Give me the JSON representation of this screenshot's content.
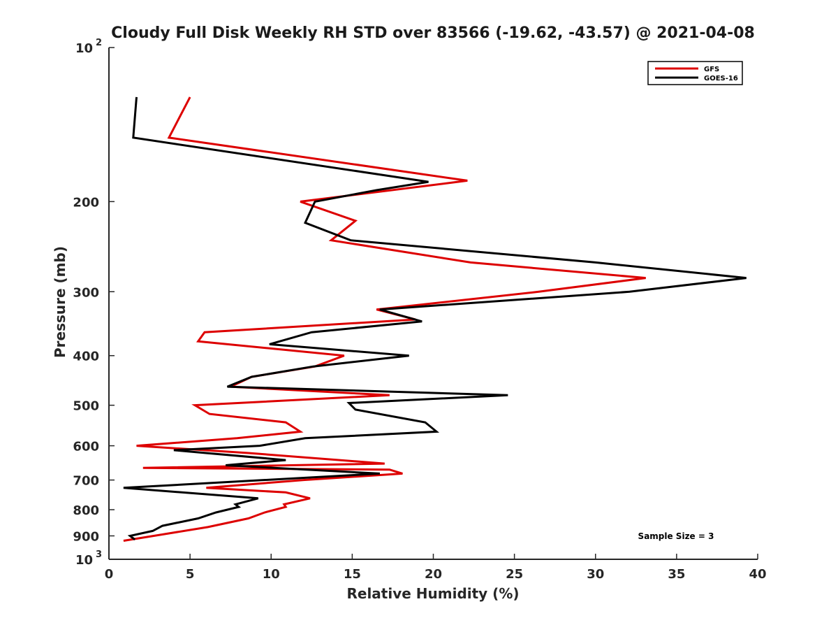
{
  "chart_data": {
    "type": "line",
    "title": "Cloudy Full Disk Weekly RH STD over 83566 (-19.62, -43.57) @ 2021-04-08",
    "xlabel": "Relative Humidity (%)",
    "ylabel": "Pressure (mb)",
    "x_scale": "linear",
    "y_scale": "log",
    "y_reversed": true,
    "xlim": [
      0,
      40
    ],
    "ylim": [
      100,
      1000
    ],
    "x_ticks": [
      0,
      5,
      10,
      15,
      20,
      25,
      30,
      35,
      40
    ],
    "y_ticks": [
      {
        "value": 100,
        "label": "10",
        "sup": "2"
      },
      {
        "value": 200,
        "label": "200"
      },
      {
        "value": 300,
        "label": "300"
      },
      {
        "value": 400,
        "label": "400"
      },
      {
        "value": 500,
        "label": "500"
      },
      {
        "value": 600,
        "label": "600"
      },
      {
        "value": 700,
        "label": "700"
      },
      {
        "value": 800,
        "label": "800"
      },
      {
        "value": 900,
        "label": "900"
      },
      {
        "value": 1000,
        "label": "10",
        "sup": "3"
      }
    ],
    "grid": false,
    "legend_position": "top-right",
    "annotation": "Sample Size = 3",
    "series": [
      {
        "name": "GFS",
        "color": "#dd0000",
        "points": [
          [
            5.0,
            125
          ],
          [
            3.7,
            150
          ],
          [
            22.1,
            182
          ],
          [
            11.8,
            200
          ],
          [
            15.2,
            218
          ],
          [
            13.7,
            238
          ],
          [
            22.3,
            263
          ],
          [
            33.1,
            282
          ],
          [
            26.5,
            300
          ],
          [
            16.5,
            325
          ],
          [
            18.9,
            340
          ],
          [
            5.9,
            360
          ],
          [
            5.5,
            375
          ],
          [
            14.5,
            400
          ],
          [
            12.7,
            420
          ],
          [
            8.8,
            440
          ],
          [
            7.5,
            460
          ],
          [
            17.3,
            478
          ],
          [
            5.3,
            500
          ],
          [
            6.2,
            520
          ],
          [
            10.9,
            540
          ],
          [
            11.8,
            563
          ],
          [
            7.9,
            580
          ],
          [
            1.7,
            600
          ],
          [
            8.6,
            620
          ],
          [
            17.0,
            650
          ],
          [
            2.1,
            663
          ],
          [
            17.3,
            668
          ],
          [
            18.1,
            680
          ],
          [
            12.0,
            700
          ],
          [
            6.0,
            725
          ],
          [
            10.9,
            740
          ],
          [
            12.4,
            760
          ],
          [
            10.8,
            781
          ],
          [
            10.9,
            790
          ],
          [
            9.6,
            810
          ],
          [
            8.6,
            832
          ],
          [
            6.1,
            865
          ],
          [
            0.9,
            920
          ]
        ]
      },
      {
        "name": "GOES-16",
        "color": "#000000",
        "points": [
          [
            1.7,
            125
          ],
          [
            1.5,
            150
          ],
          [
            19.7,
            183
          ],
          [
            16.5,
            190
          ],
          [
            12.7,
            200
          ],
          [
            12.1,
            220
          ],
          [
            14.9,
            238
          ],
          [
            30.0,
            263
          ],
          [
            39.3,
            282
          ],
          [
            32.1,
            300
          ],
          [
            16.7,
            325
          ],
          [
            19.3,
            343
          ],
          [
            12.5,
            360
          ],
          [
            9.9,
            380
          ],
          [
            18.5,
            400
          ],
          [
            12.6,
            420
          ],
          [
            8.8,
            440
          ],
          [
            7.3,
            460
          ],
          [
            24.6,
            478
          ],
          [
            14.8,
            495
          ],
          [
            15.2,
            510
          ],
          [
            19.5,
            540
          ],
          [
            20.2,
            563
          ],
          [
            12.1,
            580
          ],
          [
            9.3,
            600
          ],
          [
            4.0,
            612
          ],
          [
            10.9,
            640
          ],
          [
            7.2,
            655
          ],
          [
            16.7,
            680
          ],
          [
            0.9,
            725
          ],
          [
            9.2,
            760
          ],
          [
            7.8,
            781
          ],
          [
            8.0,
            790
          ],
          [
            6.6,
            810
          ],
          [
            5.5,
            832
          ],
          [
            3.3,
            860
          ],
          [
            2.7,
            880
          ],
          [
            1.3,
            900
          ],
          [
            1.6,
            915
          ]
        ]
      }
    ]
  }
}
